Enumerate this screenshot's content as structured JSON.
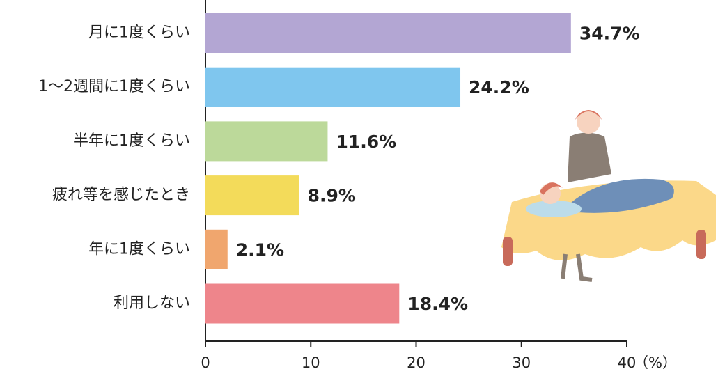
{
  "chart_data": {
    "type": "bar",
    "orientation": "horizontal",
    "categories": [
      "月に1度くらい",
      "1～2週間に1度くらい",
      "半年に1度くらい",
      "疲れ等を感じたとき",
      "年に1度くらい",
      "利用しない"
    ],
    "values": [
      34.7,
      24.2,
      11.6,
      8.9,
      2.1,
      18.4
    ],
    "value_labels": [
      "34.7%",
      "24.2%",
      "11.6%",
      "8.9%",
      "2.1%",
      "18.4%"
    ],
    "colors": [
      "#b3a6d3",
      "#7fc6ee",
      "#bcd99a",
      "#f3db5a",
      "#f0a66e",
      "#ee858b"
    ],
    "xlim": [
      0,
      40
    ],
    "xticks": [
      0,
      10,
      20,
      30,
      40
    ],
    "xlabel": "（%）"
  }
}
